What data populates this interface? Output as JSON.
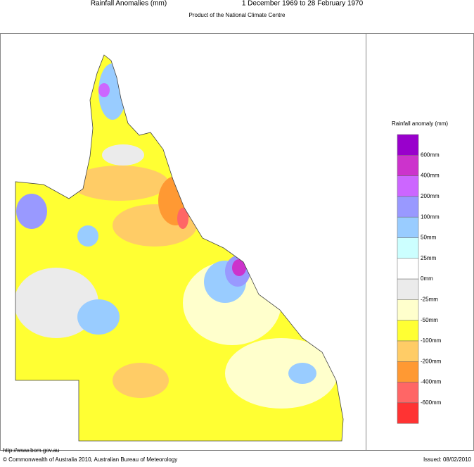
{
  "header": {
    "title": "Rainfall Anomalies (mm)",
    "period": "1 December 1969 to 28 February 1970",
    "subtitle": "Product of the National Climate Centre"
  },
  "legend": {
    "title": "Rainfall anomaly (mm)",
    "labels": [
      "600mm",
      "400mm",
      "200mm",
      "100mm",
      "50mm",
      "25mm",
      "0mm",
      "-25mm",
      "-50mm",
      "-100mm",
      "-200mm",
      "-400mm",
      "-600mm"
    ],
    "colors": [
      "#9900cc",
      "#cc33cc",
      "#cc66ff",
      "#9999ff",
      "#99ccff",
      "#ccffff",
      "#ffffff",
      "#ebebeb",
      "#ffffcc",
      "#ffff33",
      "#ffcc66",
      "#ff9933",
      "#ff6666",
      "#ff3333"
    ]
  },
  "footer": {
    "url": "http://www.bom.gov.au",
    "copyright": "© Commonwealth of Australia 2010, Australian Bureau of Meteorology",
    "issued": "Issued: 08/02/2010"
  }
}
